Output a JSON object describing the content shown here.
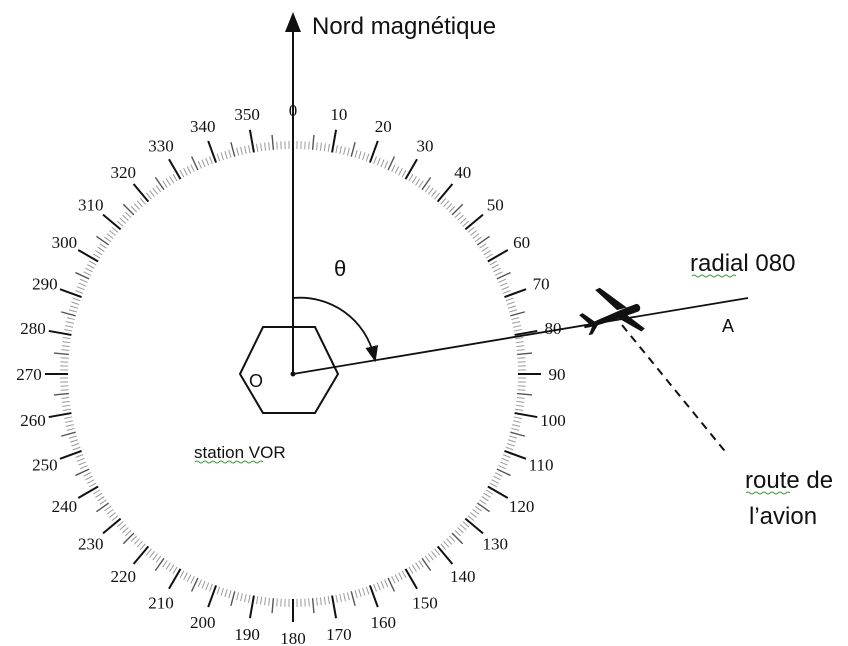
{
  "north_label": "Nord magnétique",
  "theta_label": "θ",
  "center_label": "O",
  "station_label": "station VOR",
  "radial_label": "radial 080",
  "point_label": "A",
  "route_label_line1": "route de",
  "route_label_line2": "l’avion",
  "radial_bearing_deg": 80,
  "compass_labels": [
    "0",
    "10",
    "20",
    "30",
    "40",
    "50",
    "60",
    "70",
    "80",
    "90",
    "100",
    "110",
    "120",
    "130",
    "140",
    "150",
    "160",
    "170",
    "180",
    "190",
    "200",
    "210",
    "220",
    "230",
    "240",
    "250",
    "260",
    "270",
    "280",
    "290",
    "300",
    "310",
    "320",
    "330",
    "340",
    "350"
  ],
  "colors": {
    "ink": "#111111",
    "tick": "#555555",
    "fine_tick": "#9a9a9a",
    "spellcheck": "#3a9a3a"
  },
  "icons": {
    "aircraft": "airplane-icon",
    "station": "hexagon-icon"
  }
}
